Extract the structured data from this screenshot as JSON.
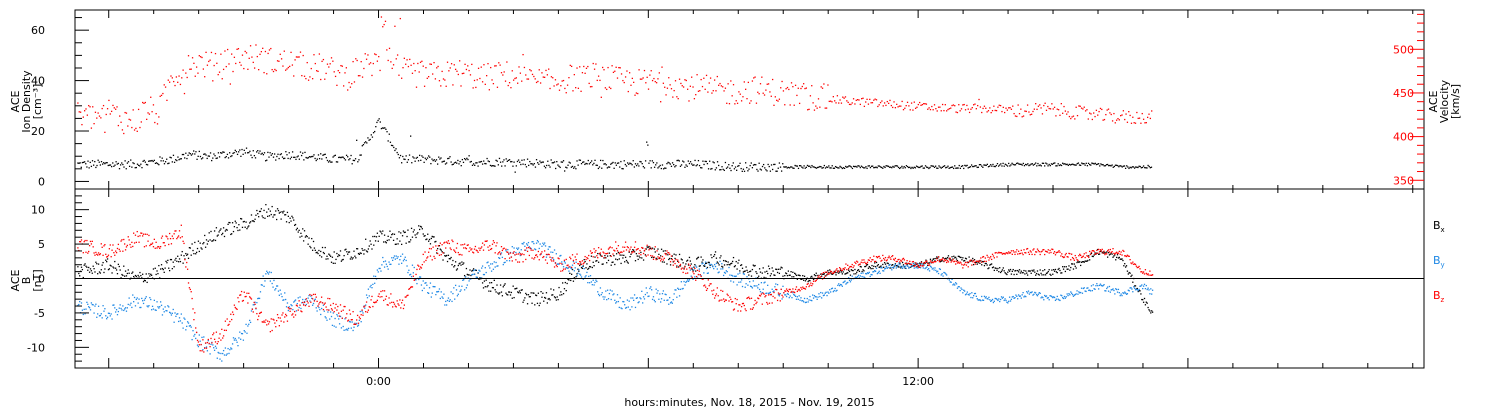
{
  "chart_data": [
    {
      "type": "scatter",
      "panel": "top",
      "ylabel_lines": [
        "ACE",
        "Ion Density",
        "[cm⁻³]"
      ],
      "ylim": [
        -3,
        68
      ],
      "yticks": [
        0,
        20,
        40,
        60
      ],
      "y2label_lines": [
        "ACE",
        "Velocity",
        "[km/s]"
      ],
      "y2lim": [
        340,
        545
      ],
      "y2ticks": [
        350,
        400,
        450,
        500
      ],
      "xlim_hours": [
        -6.75,
        23.25
      ],
      "data_end_hour": 17.2,
      "colors": {
        "density": "#000000",
        "velocity": "#ff0000"
      },
      "series": [
        {
          "name": "Ion Density",
          "axis": "left",
          "x": [
            -6.7,
            -5.5,
            -5.0,
            -4.6,
            -4.2,
            -3.8,
            -3.4,
            -3.0,
            -2.5,
            -2.0,
            -1.5,
            -1.0,
            -0.5,
            0.0,
            0.5,
            1.0,
            2.0,
            3.0,
            4.0,
            5.0,
            6.0,
            7.0,
            8.0,
            9.0,
            10.0,
            11.0,
            12.0,
            13.0,
            14.0,
            15.0,
            16.0,
            16.5,
            17.2
          ],
          "values": [
            7,
            7,
            8,
            9,
            11,
            10,
            11,
            12,
            10,
            11,
            10,
            9,
            9,
            24,
            9,
            9,
            8,
            8,
            7,
            7,
            7,
            7,
            6,
            6,
            6,
            6,
            6,
            6,
            7,
            7,
            7,
            6,
            6
          ]
        },
        {
          "name": "Velocity",
          "axis": "right",
          "x": [
            -6.7,
            -6.3,
            -6.0,
            -5.7,
            -5.4,
            -5.2,
            -4.9,
            -4.6,
            -4.3,
            -4.0,
            -3.6,
            -3.2,
            -2.8,
            -2.4,
            -2.0,
            -1.6,
            -1.3,
            -1.0,
            -0.7,
            -0.4,
            -0.1,
            0.2,
            0.5,
            0.9,
            1.3,
            1.8,
            2.3,
            2.8,
            3.3,
            3.8,
            4.3,
            4.8,
            5.3,
            5.8,
            6.3,
            6.8,
            7.3,
            7.8,
            8.3,
            8.8,
            9.3,
            9.8,
            10.3,
            10.8,
            11.3,
            11.8,
            12.3,
            12.8,
            13.3,
            13.8,
            14.3,
            14.8,
            15.3,
            15.8,
            16.3,
            16.8,
            17.2
          ],
          "values": [
            425,
            423,
            430,
            420,
            418,
            432,
            428,
            470,
            478,
            485,
            480,
            490,
            492,
            487,
            485,
            480,
            480,
            475,
            470,
            480,
            485,
            488,
            475,
            472,
            470,
            474,
            468,
            472,
            466,
            462,
            468,
            470,
            465,
            462,
            465,
            458,
            455,
            452,
            455,
            452,
            448,
            445,
            442,
            440,
            438,
            436,
            434,
            433,
            433,
            432,
            430,
            432,
            430,
            426,
            424,
            422,
            425
          ]
        }
      ]
    },
    {
      "type": "scatter",
      "panel": "bottom",
      "ylabel_lines": [
        "ACE",
        "B",
        "[nT]"
      ],
      "ylim": [
        -13,
        13
      ],
      "yticks": [
        -10,
        -5,
        0,
        5,
        10
      ],
      "xlim_hours": [
        -6.75,
        23.25
      ],
      "xticks": [
        {
          "hour": 0,
          "label": "0:00"
        },
        {
          "hour": 12,
          "label": "12:00"
        }
      ],
      "xlabel": "hours:minutes, Nov. 18, 2015 - Nov. 19, 2015",
      "legend_position": "right",
      "series": [
        {
          "name": "B",
          "subscript": "x",
          "color": "#000000",
          "x": [
            -6.7,
            -6.0,
            -5.4,
            -4.9,
            -4.4,
            -4.0,
            -3.5,
            -3.0,
            -2.5,
            -2.0,
            -1.5,
            -1.0,
            -0.5,
            0.0,
            0.5,
            1.0,
            1.5,
            2.0,
            2.5,
            3.0,
            3.5,
            4.0,
            4.5,
            5.0,
            5.5,
            6.0,
            6.5,
            7.0,
            7.5,
            8.0,
            8.5,
            9.0,
            9.5,
            10.0,
            10.5,
            11.0,
            11.5,
            12.0,
            12.5,
            13.0,
            13.5,
            14.0,
            14.5,
            15.0,
            15.5,
            16.0,
            16.5,
            17.0,
            17.2
          ],
          "values": [
            1,
            2,
            0,
            1,
            3,
            5,
            7,
            8,
            10,
            9,
            5,
            3,
            4,
            6,
            6,
            7,
            3,
            1,
            -1,
            -2,
            -3,
            -2,
            2,
            3,
            3,
            4,
            3,
            2,
            3,
            2,
            1,
            1,
            0,
            1,
            1,
            2,
            2,
            2,
            3,
            3,
            2,
            1,
            1,
            1,
            2,
            4,
            3,
            -3,
            -5
          ]
        },
        {
          "name": "B",
          "subscript": "y",
          "color": "#1e88e5",
          "x": [
            -6.7,
            -6.0,
            -5.4,
            -4.9,
            -4.4,
            -4.0,
            -3.5,
            -3.0,
            -2.5,
            -2.0,
            -1.5,
            -1.0,
            -0.5,
            0.0,
            0.5,
            1.0,
            1.5,
            2.0,
            2.5,
            3.0,
            3.5,
            4.0,
            4.5,
            5.0,
            5.5,
            6.0,
            6.5,
            7.0,
            7.5,
            8.0,
            8.5,
            9.0,
            9.5,
            10.0,
            10.5,
            11.0,
            11.5,
            12.0,
            12.5,
            13.0,
            13.5,
            14.0,
            14.5,
            15.0,
            15.5,
            16.0,
            16.5,
            17.0,
            17.2
          ],
          "values": [
            -4,
            -5,
            -3,
            -4,
            -6,
            -9,
            -11,
            -8,
            1,
            -4,
            -3,
            -6,
            -7,
            2,
            3,
            -1,
            -3,
            0,
            2,
            4,
            5,
            3,
            1,
            -2,
            -4,
            -2,
            -3,
            1,
            2,
            0,
            -1,
            -2,
            -3,
            -2,
            0,
            1,
            2,
            2,
            1,
            -2,
            -3,
            -3,
            -2,
            -3,
            -2,
            -1,
            -2,
            -1,
            -2
          ]
        },
        {
          "name": "B",
          "subscript": "z",
          "color": "#ff0000",
          "x": [
            -6.7,
            -6.0,
            -5.4,
            -4.9,
            -4.4,
            -4.0,
            -3.5,
            -3.0,
            -2.5,
            -2.0,
            -1.5,
            -1.0,
            -0.5,
            0.0,
            0.5,
            1.0,
            1.5,
            2.0,
            2.5,
            3.0,
            3.5,
            4.0,
            4.5,
            5.0,
            5.5,
            6.0,
            6.5,
            7.0,
            7.5,
            8.0,
            8.5,
            9.0,
            9.5,
            10.0,
            10.5,
            11.0,
            11.5,
            12.0,
            12.5,
            13.0,
            13.5,
            14.0,
            14.5,
            15.0,
            15.5,
            16.0,
            16.5,
            17.0,
            17.2
          ],
          "values": [
            5,
            4,
            6,
            5,
            7,
            -10,
            -8,
            -2,
            -7,
            -5,
            -3,
            -4,
            -6,
            -2,
            -4,
            3,
            5,
            4,
            5,
            3,
            4,
            2,
            3,
            4,
            5,
            4,
            3,
            1,
            -2,
            -4,
            -3,
            -2,
            -1,
            1,
            2,
            3,
            3,
            2,
            3,
            2,
            3,
            4,
            4,
            4,
            3,
            4,
            4,
            1,
            1
          ]
        }
      ]
    }
  ]
}
